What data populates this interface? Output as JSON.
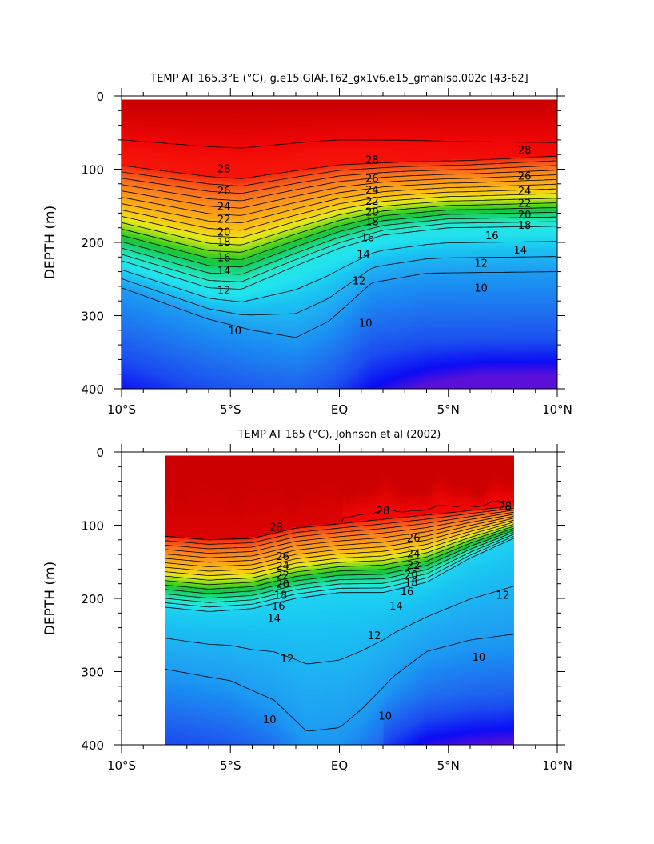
{
  "chart_data": [
    {
      "type": "heatmap",
      "subtype": "filled-contour",
      "title": "TEMP AT 165.3°E (°C), g.e15.GIAF.T62_gx1v6.e15_gmaniso.002c [43-62]",
      "ylabel": "DEPTH (m)",
      "xlabel": "",
      "x_ticks": [
        "10°S",
        "5°S",
        "EQ",
        "5°N",
        "10°N"
      ],
      "y_ticks": [
        "0",
        "100",
        "200",
        "300",
        "400"
      ],
      "xlim": [
        -10,
        10
      ],
      "ylim": [
        0,
        400
      ],
      "y_inverted": true,
      "data_extent": {
        "lat": [
          -10,
          10
        ],
        "depth": [
          5,
          400
        ]
      },
      "contour_interval": 1,
      "contour_labels": [
        {
          "text": "28",
          "lat": -5.3,
          "depth": 99
        },
        {
          "text": "26",
          "lat": -5.3,
          "depth": 129
        },
        {
          "text": "24",
          "lat": -5.3,
          "depth": 150
        },
        {
          "text": "22",
          "lat": -5.3,
          "depth": 168
        },
        {
          "text": "20",
          "lat": -5.3,
          "depth": 185
        },
        {
          "text": "18",
          "lat": -5.3,
          "depth": 199
        },
        {
          "text": "16",
          "lat": -5.3,
          "depth": 220
        },
        {
          "text": "14",
          "lat": -5.3,
          "depth": 238
        },
        {
          "text": "12",
          "lat": -5.3,
          "depth": 265
        },
        {
          "text": "10",
          "lat": -4.8,
          "depth": 320
        },
        {
          "text": "28",
          "lat": 1.5,
          "depth": 87
        },
        {
          "text": "26",
          "lat": 1.5,
          "depth": 112
        },
        {
          "text": "24",
          "lat": 1.5,
          "depth": 128
        },
        {
          "text": "22",
          "lat": 1.5,
          "depth": 143
        },
        {
          "text": "20",
          "lat": 1.5,
          "depth": 158
        },
        {
          "text": "18",
          "lat": 1.5,
          "depth": 171
        },
        {
          "text": "16",
          "lat": 1.3,
          "depth": 193
        },
        {
          "text": "14",
          "lat": 1.1,
          "depth": 216
        },
        {
          "text": "12",
          "lat": 0.9,
          "depth": 252
        },
        {
          "text": "10",
          "lat": 1.2,
          "depth": 310
        },
        {
          "text": "28",
          "lat": 8.5,
          "depth": 73
        },
        {
          "text": "26",
          "lat": 8.5,
          "depth": 109
        },
        {
          "text": "24",
          "lat": 8.5,
          "depth": 129
        },
        {
          "text": "22",
          "lat": 8.5,
          "depth": 146
        },
        {
          "text": "20",
          "lat": 8.5,
          "depth": 162
        },
        {
          "text": "18",
          "lat": 8.5,
          "depth": 176
        },
        {
          "text": "16",
          "lat": 7.0,
          "depth": 190
        },
        {
          "text": "14",
          "lat": 8.3,
          "depth": 210
        },
        {
          "text": "12",
          "lat": 6.5,
          "depth": 228
        },
        {
          "text": "10",
          "lat": 6.5,
          "depth": 262
        }
      ]
    },
    {
      "type": "heatmap",
      "subtype": "filled-contour",
      "title": "TEMP AT 165 (°C), Johnson et al (2002)",
      "ylabel": "DEPTH (m)",
      "xlabel": "",
      "x_ticks": [
        "10°S",
        "5°S",
        "EQ",
        "5°N",
        "10°N"
      ],
      "y_ticks": [
        "0",
        "100",
        "200",
        "300",
        "400"
      ],
      "xlim": [
        -10,
        10
      ],
      "ylim": [
        0,
        400
      ],
      "y_inverted": true,
      "data_extent": {
        "lat": [
          -8,
          8
        ],
        "depth": [
          5,
          400
        ]
      },
      "contour_interval": 1,
      "contour_labels": [
        {
          "text": "28",
          "lat": -2.9,
          "depth": 102
        },
        {
          "text": "26",
          "lat": -2.6,
          "depth": 142
        },
        {
          "text": "24",
          "lat": -2.6,
          "depth": 155
        },
        {
          "text": "22",
          "lat": -2.6,
          "depth": 168
        },
        {
          "text": "20",
          "lat": -2.6,
          "depth": 180
        },
        {
          "text": "18",
          "lat": -2.7,
          "depth": 195
        },
        {
          "text": "16",
          "lat": -2.8,
          "depth": 210
        },
        {
          "text": "14",
          "lat": -3.0,
          "depth": 227
        },
        {
          "text": "12",
          "lat": -2.4,
          "depth": 282
        },
        {
          "text": "10",
          "lat": -3.2,
          "depth": 365
        },
        {
          "text": "28",
          "lat": 2.0,
          "depth": 80
        },
        {
          "text": "26",
          "lat": 3.4,
          "depth": 117
        },
        {
          "text": "24",
          "lat": 3.4,
          "depth": 138
        },
        {
          "text": "22",
          "lat": 3.4,
          "depth": 154
        },
        {
          "text": "20",
          "lat": 3.3,
          "depth": 167
        },
        {
          "text": "18",
          "lat": 3.3,
          "depth": 178
        },
        {
          "text": "16",
          "lat": 3.1,
          "depth": 190
        },
        {
          "text": "14",
          "lat": 2.6,
          "depth": 210
        },
        {
          "text": "12",
          "lat": 1.6,
          "depth": 250
        },
        {
          "text": "10",
          "lat": 2.1,
          "depth": 360
        },
        {
          "text": "28",
          "lat": 7.6,
          "depth": 74
        },
        {
          "text": "12",
          "lat": 7.5,
          "depth": 195
        },
        {
          "text": "10",
          "lat": 6.4,
          "depth": 280
        }
      ]
    }
  ]
}
